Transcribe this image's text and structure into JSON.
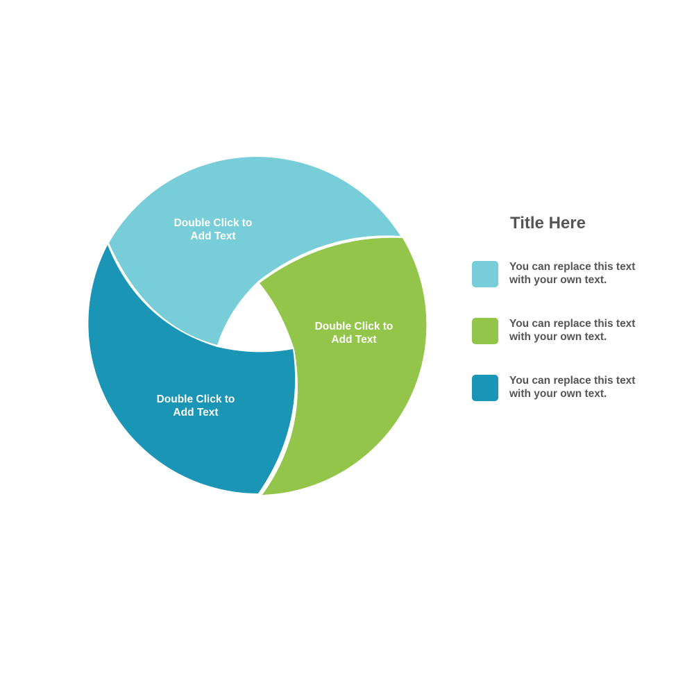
{
  "colors": {
    "segment_1": "#78CED8",
    "segment_2": "#93C54B",
    "segment_3": "#1A95B6",
    "text": "#555555"
  },
  "segments": [
    {
      "line1": "Double Click to",
      "line2": "Add Text"
    },
    {
      "line1": "Double Click to",
      "line2": "Add Text"
    },
    {
      "line1": "Double Click to",
      "line2": "Add Text"
    }
  ],
  "legend": {
    "title": "Title Here",
    "items": [
      {
        "line1": "You can replace this text",
        "line2": "with your own text."
      },
      {
        "line1": "You can replace this text",
        "line2": "with your own text."
      },
      {
        "line1": "You can replace this text",
        "line2": "with your own text."
      }
    ]
  }
}
